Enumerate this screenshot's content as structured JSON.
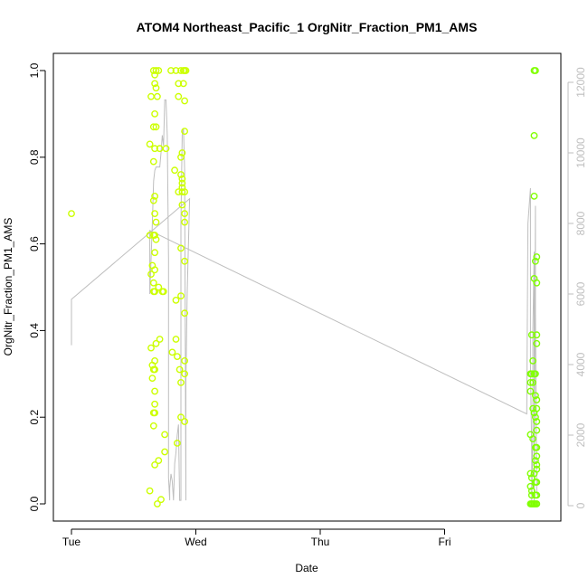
{
  "chart_data": {
    "type": "scatter",
    "title": "ATOM4 Northeast_Pacific_1 OrgNitr_Fraction_PM1_AMS",
    "xlabel": "Date",
    "ylabel": "OrgNitr_Fraction_PM1_AMS",
    "x_tick_labels": [
      "Tue",
      "Wed",
      "Thu",
      "Fri"
    ],
    "x_unit": "days since Tue 00:00",
    "xlim": [
      -0.05,
      3.85
    ],
    "ylim": [
      0,
      1.0
    ],
    "y_ticks": [
      0.0,
      0.2,
      0.4,
      0.6,
      0.8,
      1.0
    ],
    "y_tick_labels": [
      "0.0",
      "0.2",
      "0.4",
      "0.6",
      "0.8",
      "1.0"
    ],
    "y2_ticks": [
      0,
      2000,
      4000,
      6000,
      8000,
      10000,
      12000
    ],
    "y2_tick_labels": [
      "0",
      "2000",
      "4000",
      "6000",
      "8000",
      "10000",
      "12000"
    ],
    "y2lim": [
      0,
      12500
    ],
    "grid": false,
    "legend": "none",
    "colors": {
      "tue_wed_points": "#ccff00",
      "fri_points": "#80ff00",
      "altitude_line": "#bebebe",
      "axis": "#000000",
      "right_axis": "#bebebe"
    },
    "series": [
      {
        "values": [
          {
            "x": 0.0,
            "y": 0.67
          },
          {
            "x": 0.64,
            "y": 0.94
          },
          {
            "x": 0.63,
            "y": 0.83
          },
          {
            "x": 0.63,
            "y": 0.62
          },
          {
            "x": 0.64,
            "y": 0.53
          },
          {
            "x": 0.65,
            "y": 0.55
          },
          {
            "x": 0.64,
            "y": 0.36
          },
          {
            "x": 0.65,
            "y": 0.32
          },
          {
            "x": 0.65,
            "y": 0.29
          },
          {
            "x": 0.63,
            "y": 0.03
          },
          {
            "x": 0.66,
            "y": 0.21
          },
          {
            "x": 0.66,
            "y": 0.18
          },
          {
            "x": 0.67,
            "y": 0.09
          },
          {
            "x": 0.66,
            "y": 1.0
          },
          {
            "x": 0.67,
            "y": 0.99
          },
          {
            "x": 0.67,
            "y": 0.97
          },
          {
            "x": 0.68,
            "y": 1.0
          },
          {
            "x": 0.68,
            "y": 0.96
          },
          {
            "x": 0.69,
            "y": 0.94
          },
          {
            "x": 0.67,
            "y": 0.9
          },
          {
            "x": 0.66,
            "y": 0.87
          },
          {
            "x": 0.68,
            "y": 0.87
          },
          {
            "x": 0.67,
            "y": 0.82
          },
          {
            "x": 0.66,
            "y": 0.79
          },
          {
            "x": 0.66,
            "y": 0.7
          },
          {
            "x": 0.67,
            "y": 0.71
          },
          {
            "x": 0.67,
            "y": 0.67
          },
          {
            "x": 0.68,
            "y": 0.65
          },
          {
            "x": 0.66,
            "y": 0.62
          },
          {
            "x": 0.67,
            "y": 0.62
          },
          {
            "x": 0.68,
            "y": 0.61
          },
          {
            "x": 0.67,
            "y": 0.58
          },
          {
            "x": 0.67,
            "y": 0.54
          },
          {
            "x": 0.66,
            "y": 0.51
          },
          {
            "x": 0.66,
            "y": 0.49
          },
          {
            "x": 0.67,
            "y": 0.49
          },
          {
            "x": 0.68,
            "y": 0.37
          },
          {
            "x": 0.67,
            "y": 0.33
          },
          {
            "x": 0.66,
            "y": 0.31
          },
          {
            "x": 0.67,
            "y": 0.31
          },
          {
            "x": 0.67,
            "y": 0.26
          },
          {
            "x": 0.67,
            "y": 0.23
          },
          {
            "x": 0.67,
            "y": 0.21
          },
          {
            "x": 0.69,
            "y": 0.0
          },
          {
            "x": 0.7,
            "y": 1.0
          },
          {
            "x": 0.7,
            "y": 0.1
          },
          {
            "x": 0.71,
            "y": 0.82
          },
          {
            "x": 0.7,
            "y": 0.5
          },
          {
            "x": 0.71,
            "y": 0.38
          },
          {
            "x": 0.72,
            "y": 0.01
          },
          {
            "x": 0.73,
            "y": 0.49
          },
          {
            "x": 0.74,
            "y": 0.49
          },
          {
            "x": 0.75,
            "y": 0.12
          },
          {
            "x": 0.75,
            "y": 0.16
          },
          {
            "x": 0.76,
            "y": 0.82
          },
          {
            "x": 0.8,
            "y": 1.0
          },
          {
            "x": 0.81,
            "y": 0.35
          },
          {
            "x": 0.83,
            "y": 0.77
          },
          {
            "x": 0.84,
            "y": 1.0
          },
          {
            "x": 0.84,
            "y": 0.47
          },
          {
            "x": 0.84,
            "y": 0.38
          },
          {
            "x": 0.85,
            "y": 0.34
          },
          {
            "x": 0.85,
            "y": 0.14
          },
          {
            "x": 0.86,
            "y": 0.97
          },
          {
            "x": 0.86,
            "y": 0.94
          },
          {
            "x": 0.86,
            "y": 0.72
          },
          {
            "x": 0.87,
            "y": 0.31
          },
          {
            "x": 0.88,
            "y": 1.0
          },
          {
            "x": 0.88,
            "y": 0.8
          },
          {
            "x": 0.88,
            "y": 0.76
          },
          {
            "x": 0.88,
            "y": 0.59
          },
          {
            "x": 0.88,
            "y": 0.48
          },
          {
            "x": 0.88,
            "y": 0.28
          },
          {
            "x": 0.88,
            "y": 0.2
          },
          {
            "x": 0.89,
            "y": 0.81
          },
          {
            "x": 0.89,
            "y": 0.75
          },
          {
            "x": 0.89,
            "y": 0.74
          },
          {
            "x": 0.89,
            "y": 0.73
          },
          {
            "x": 0.89,
            "y": 0.72
          },
          {
            "x": 0.89,
            "y": 0.69
          },
          {
            "x": 0.9,
            "y": 1.0
          },
          {
            "x": 0.9,
            "y": 0.97
          },
          {
            "x": 0.91,
            "y": 1.0
          },
          {
            "x": 0.91,
            "y": 0.93
          },
          {
            "x": 0.91,
            "y": 0.86
          },
          {
            "x": 0.91,
            "y": 0.72
          },
          {
            "x": 0.91,
            "y": 0.67
          },
          {
            "x": 0.91,
            "y": 0.65
          },
          {
            "x": 0.91,
            "y": 0.56
          },
          {
            "x": 0.91,
            "y": 0.44
          },
          {
            "x": 0.91,
            "y": 0.33
          },
          {
            "x": 0.91,
            "y": 0.3
          },
          {
            "x": 0.91,
            "y": 0.19
          },
          {
            "x": 0.92,
            "y": 1.0
          }
        ]
      },
      {
        "values": [
          {
            "x": 3.69,
            "y": 0.16
          },
          {
            "x": 3.69,
            "y": 0.07
          },
          {
            "x": 3.69,
            "y": 0.04
          },
          {
            "x": 3.69,
            "y": 0.0
          },
          {
            "x": 3.69,
            "y": 0.26
          },
          {
            "x": 3.69,
            "y": 0.28
          },
          {
            "x": 3.69,
            "y": 0.3
          },
          {
            "x": 3.7,
            "y": 0.39
          },
          {
            "x": 3.7,
            "y": 0.3
          },
          {
            "x": 3.7,
            "y": 0.06
          },
          {
            "x": 3.7,
            "y": 0.03
          },
          {
            "x": 3.7,
            "y": 0.02
          },
          {
            "x": 3.7,
            "y": 0.0
          },
          {
            "x": 3.71,
            "y": 0.33
          },
          {
            "x": 3.71,
            "y": 0.28
          },
          {
            "x": 3.71,
            "y": 0.22
          },
          {
            "x": 3.71,
            "y": 0.15
          },
          {
            "x": 3.71,
            "y": 0.0
          },
          {
            "x": 3.72,
            "y": 1.0
          },
          {
            "x": 3.72,
            "y": 0.85
          },
          {
            "x": 3.72,
            "y": 0.71
          },
          {
            "x": 3.72,
            "y": 0.52
          },
          {
            "x": 3.72,
            "y": 0.3
          },
          {
            "x": 3.72,
            "y": 0.21
          },
          {
            "x": 3.72,
            "y": 0.07
          },
          {
            "x": 3.72,
            "y": 0.0
          },
          {
            "x": 3.73,
            "y": 1.0
          },
          {
            "x": 3.73,
            "y": 0.56
          },
          {
            "x": 3.73,
            "y": 0.3
          },
          {
            "x": 3.73,
            "y": 0.25
          },
          {
            "x": 3.73,
            "y": 0.2
          },
          {
            "x": 3.73,
            "y": 0.13
          },
          {
            "x": 3.73,
            "y": 0.1
          },
          {
            "x": 3.73,
            "y": 0.05
          },
          {
            "x": 3.73,
            "y": 0.02
          },
          {
            "x": 3.73,
            "y": 0.0
          },
          {
            "x": 3.74,
            "y": 0.57
          },
          {
            "x": 3.74,
            "y": 0.51
          },
          {
            "x": 3.74,
            "y": 0.39
          },
          {
            "x": 3.74,
            "y": 0.37
          },
          {
            "x": 3.74,
            "y": 0.24
          },
          {
            "x": 3.74,
            "y": 0.22
          },
          {
            "x": 3.74,
            "y": 0.19
          },
          {
            "x": 3.74,
            "y": 0.17
          },
          {
            "x": 3.74,
            "y": 0.13
          },
          {
            "x": 3.74,
            "y": 0.11
          },
          {
            "x": 3.74,
            "y": 0.09
          },
          {
            "x": 3.74,
            "y": 0.08
          },
          {
            "x": 3.74,
            "y": 0.05
          },
          {
            "x": 3.74,
            "y": 0.02
          },
          {
            "x": 3.74,
            "y": 0.0
          }
        ]
      }
    ],
    "secondary_series": {
      "axis": "right",
      "values": [
        {
          "x": 0.0,
          "y": 4550
        },
        {
          "x": 0.0,
          "y": 5850
        },
        {
          "x": 0.95,
          "y": 8700
        },
        {
          "x": 0.93,
          "y": 6000
        },
        {
          "x": 0.92,
          "y": 3500
        },
        {
          "x": 0.92,
          "y": 150
        },
        {
          "x": 0.91,
          "y": 9500
        },
        {
          "x": 0.9,
          "y": 10700
        },
        {
          "x": 0.89,
          "y": 10500
        },
        {
          "x": 0.88,
          "y": 8000
        },
        {
          "x": 0.88,
          "y": 2500
        },
        {
          "x": 0.88,
          "y": 150
        },
        {
          "x": 0.87,
          "y": 150
        },
        {
          "x": 0.86,
          "y": 2300
        },
        {
          "x": 0.85,
          "y": 2000
        },
        {
          "x": 0.84,
          "y": 1500
        },
        {
          "x": 0.83,
          "y": 1200
        },
        {
          "x": 0.82,
          "y": 150
        },
        {
          "x": 0.81,
          "y": 700
        },
        {
          "x": 0.8,
          "y": 900
        },
        {
          "x": 0.79,
          "y": 500
        },
        {
          "x": 0.79,
          "y": 150
        },
        {
          "x": 0.78,
          "y": 800
        },
        {
          "x": 0.78,
          "y": 7000
        },
        {
          "x": 0.77,
          "y": 10500
        },
        {
          "x": 0.76,
          "y": 11500
        },
        {
          "x": 0.75,
          "y": 11500
        },
        {
          "x": 0.74,
          "y": 10200
        },
        {
          "x": 0.73,
          "y": 10500
        },
        {
          "x": 0.72,
          "y": 10000
        },
        {
          "x": 0.71,
          "y": 9600
        },
        {
          "x": 0.7,
          "y": 9600
        },
        {
          "x": 0.69,
          "y": 9600
        },
        {
          "x": 0.68,
          "y": 9600
        },
        {
          "x": 0.67,
          "y": 9500
        },
        {
          "x": 0.66,
          "y": 9200
        },
        {
          "x": 0.65,
          "y": 8000
        },
        {
          "x": 0.64,
          "y": 7000
        },
        {
          "x": 0.63,
          "y": 6000
        },
        {
          "x": 0.63,
          "y": 7800
        },
        {
          "x": 3.66,
          "y": 2600
        },
        {
          "x": 3.67,
          "y": 8000
        },
        {
          "x": 3.69,
          "y": 9000
        },
        {
          "x": 3.69,
          "y": 4000
        },
        {
          "x": 3.7,
          "y": 1500
        },
        {
          "x": 3.7,
          "y": 150
        },
        {
          "x": 3.71,
          "y": 2000
        },
        {
          "x": 3.71,
          "y": 5000
        },
        {
          "x": 3.72,
          "y": 7200
        },
        {
          "x": 3.72,
          "y": 3000
        },
        {
          "x": 3.72,
          "y": 150
        },
        {
          "x": 3.73,
          "y": 8500
        },
        {
          "x": 3.73,
          "y": 5500
        },
        {
          "x": 3.74,
          "y": 300
        }
      ]
    }
  }
}
